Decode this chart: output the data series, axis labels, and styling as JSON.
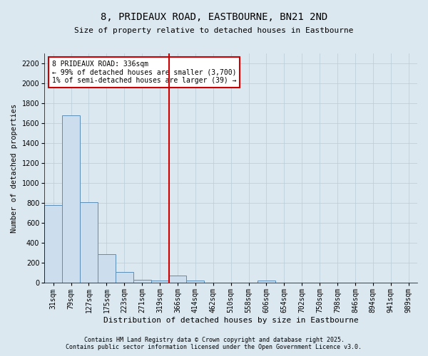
{
  "title1": "8, PRIDEAUX ROAD, EASTBOURNE, BN21 2ND",
  "title2": "Size of property relative to detached houses in Eastbourne",
  "xlabel": "Distribution of detached houses by size in Eastbourne",
  "ylabel": "Number of detached properties",
  "categories": [
    "31sqm",
    "79sqm",
    "127sqm",
    "175sqm",
    "223sqm",
    "271sqm",
    "319sqm",
    "366sqm",
    "414sqm",
    "462sqm",
    "510sqm",
    "558sqm",
    "606sqm",
    "654sqm",
    "702sqm",
    "750sqm",
    "798sqm",
    "846sqm",
    "894sqm",
    "941sqm",
    "989sqm"
  ],
  "values": [
    780,
    1680,
    810,
    290,
    110,
    30,
    20,
    70,
    20,
    0,
    0,
    0,
    20,
    0,
    0,
    0,
    0,
    0,
    0,
    0,
    0
  ],
  "bar_color": "#ccdded",
  "bar_edge_color": "#5b8db8",
  "vline_x": 6.5,
  "vline_color": "#cc0000",
  "ylim": [
    0,
    2300
  ],
  "yticks": [
    0,
    200,
    400,
    600,
    800,
    1000,
    1200,
    1400,
    1600,
    1800,
    2000,
    2200
  ],
  "grid_color": "#b8ccd8",
  "background_color": "#dce8f0",
  "annotation_text": "8 PRIDEAUX ROAD: 336sqm\n← 99% of detached houses are smaller (3,700)\n1% of semi-detached houses are larger (39) →",
  "annotation_box_color": "#ffffff",
  "annotation_edge_color": "#cc0000",
  "footer1": "Contains HM Land Registry data © Crown copyright and database right 2025.",
  "footer2": "Contains public sector information licensed under the Open Government Licence v3.0.",
  "title_fontsize": 10,
  "subtitle_fontsize": 8,
  "ylabel_fontsize": 7.5,
  "xlabel_fontsize": 8,
  "tick_fontsize": 7,
  "ytick_fontsize": 7,
  "ann_fontsize": 7,
  "footer_fontsize": 6
}
